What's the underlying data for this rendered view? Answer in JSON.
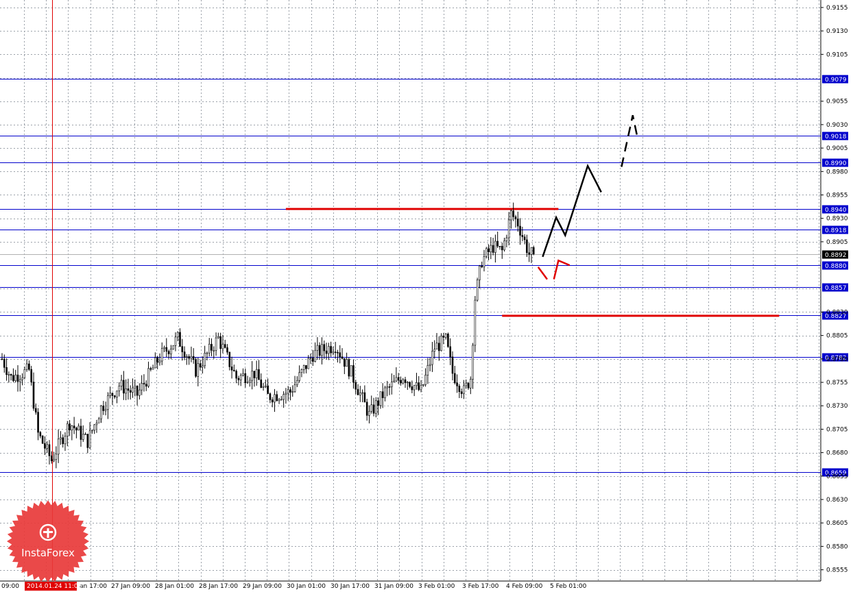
{
  "chart_data": {
    "type": "candlestick",
    "y_axis": {
      "ylim": [
        0.8543,
        0.9163
      ],
      "ticks": [
        "0.9155",
        "0.9130",
        "0.9105",
        "0.9055",
        "0.9030",
        "0.9005",
        "0.8980",
        "0.8955",
        "0.8930",
        "0.8905",
        "0.8830",
        "0.8805",
        "0.8780",
        "0.8755",
        "0.8730",
        "0.8705",
        "0.8680",
        "0.8655",
        "0.8630",
        "0.8605",
        "0.8580",
        "0.8555"
      ],
      "current_price": "0.8892"
    },
    "x_axis": {
      "labels": [
        "09:00",
        "an 17:00",
        "27 Jan 09:00",
        "28 Jan 01:00",
        "28 Jan 17:00",
        "29 Jan 09:00",
        "30 Jan 01:00",
        "30 Jan 17:00",
        "31 Jan 09:00",
        "3 Feb 01:00",
        "3 Feb 17:00",
        "4 Feb 09:00",
        "5 Feb 01:00"
      ],
      "cursor_label": "2014.01.24 11:00"
    },
    "levels": [
      {
        "value": 0.9079,
        "label": "0.9079"
      },
      {
        "value": 0.9018,
        "label": "0.9018"
      },
      {
        "value": 0.899,
        "label": "0.8990"
      },
      {
        "value": 0.894,
        "label": "0.8940"
      },
      {
        "value": 0.8918,
        "label": "0.8918"
      },
      {
        "value": 0.888,
        "label": "0.8880"
      },
      {
        "value": 0.8857,
        "label": "0.8857"
      },
      {
        "value": 0.8827,
        "label": "0.8827"
      },
      {
        "value": 0.8782,
        "label": "0.8782"
      },
      {
        "value": 0.8659,
        "label": "0.8659"
      }
    ],
    "red_levels": [
      {
        "value": 0.894,
        "from_bar": 126,
        "to_bar": 247
      },
      {
        "value": 0.8826,
        "from_bar": 222,
        "to_bar": 345
      }
    ],
    "anchors": [
      {
        "bar": 0,
        "price": 0.878
      },
      {
        "bar": 4,
        "price": 0.876
      },
      {
        "bar": 12,
        "price": 0.8768
      },
      {
        "bar": 16,
        "price": 0.87
      },
      {
        "bar": 22,
        "price": 0.8672
      },
      {
        "bar": 30,
        "price": 0.8712
      },
      {
        "bar": 38,
        "price": 0.8692
      },
      {
        "bar": 44,
        "price": 0.8728
      },
      {
        "bar": 52,
        "price": 0.8752
      },
      {
        "bar": 60,
        "price": 0.8742
      },
      {
        "bar": 70,
        "price": 0.8782
      },
      {
        "bar": 78,
        "price": 0.8802
      },
      {
        "bar": 86,
        "price": 0.8768
      },
      {
        "bar": 96,
        "price": 0.8802
      },
      {
        "bar": 104,
        "price": 0.876
      },
      {
        "bar": 112,
        "price": 0.8765
      },
      {
        "bar": 118,
        "price": 0.874
      },
      {
        "bar": 128,
        "price": 0.8745
      },
      {
        "bar": 138,
        "price": 0.8785
      },
      {
        "bar": 148,
        "price": 0.8795
      },
      {
        "bar": 155,
        "price": 0.8765
      },
      {
        "bar": 163,
        "price": 0.872
      },
      {
        "bar": 170,
        "price": 0.8745
      },
      {
        "bar": 178,
        "price": 0.8762
      },
      {
        "bar": 186,
        "price": 0.8745
      },
      {
        "bar": 192,
        "price": 0.8792
      },
      {
        "bar": 197,
        "price": 0.88
      },
      {
        "bar": 200,
        "price": 0.8765
      },
      {
        "bar": 205,
        "price": 0.8745
      },
      {
        "bar": 208,
        "price": 0.876
      },
      {
        "bar": 210,
        "price": 0.8845
      },
      {
        "bar": 213,
        "price": 0.8885
      },
      {
        "bar": 218,
        "price": 0.89
      },
      {
        "bar": 222,
        "price": 0.8895
      },
      {
        "bar": 226,
        "price": 0.8935
      },
      {
        "bar": 229,
        "price": 0.8925
      },
      {
        "bar": 234,
        "price": 0.8892
      },
      {
        "bar": 236,
        "price": 0.8892
      }
    ],
    "forecast_paths": [
      {
        "style": "solid",
        "color": "#000000",
        "points": [
          [
            240,
            0.8889
          ],
          [
            246,
            0.8931
          ],
          [
            250,
            0.8912
          ],
          [
            260,
            0.8986
          ],
          [
            266,
            0.8958
          ]
        ]
      },
      {
        "style": "dashed",
        "color": "#000000",
        "points": [
          [
            275,
            0.8985
          ],
          [
            280,
            0.904
          ],
          [
            282,
            0.9017
          ]
        ]
      },
      {
        "style": "solid",
        "color": "#e00000",
        "points": [
          [
            238,
            0.8878
          ],
          [
            242,
            0.8865
          ]
        ]
      },
      {
        "style": "solid",
        "color": "#e00000",
        "points": [
          [
            245,
            0.8865
          ],
          [
            247,
            0.8885
          ],
          [
            252,
            0.888
          ]
        ]
      }
    ],
    "colors": {
      "grid": "#9aa0a8",
      "level_line": "#0000cc",
      "level_label_bg": "#0000cc",
      "red_line": "#e00000",
      "cursor_line": "#e00000",
      "candle": "#000000",
      "price_label_bg": "#000000"
    },
    "grid": true
  },
  "watermark": {
    "brand": "InstaForex",
    "badge_color": "#e83a3a",
    "icon": "instaforex-logo-icon"
  }
}
